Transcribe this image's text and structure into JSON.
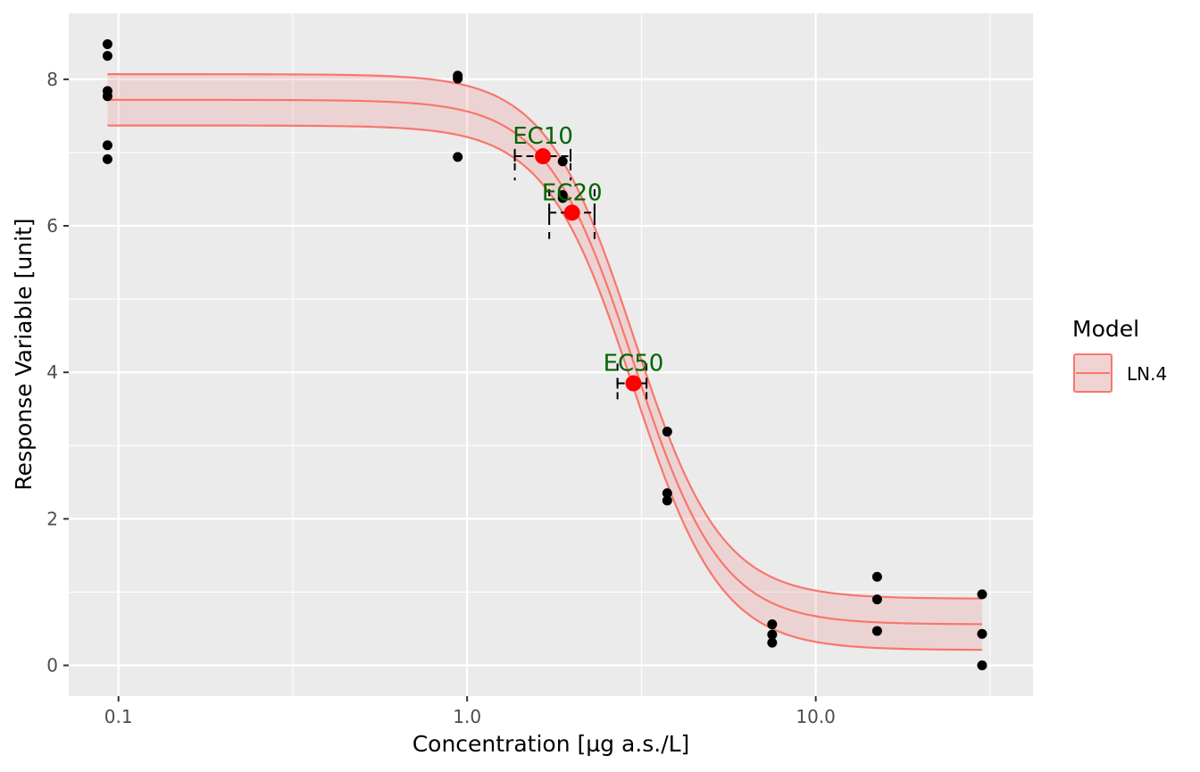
{
  "chart_data": {
    "type": "scatter",
    "xlabel": "Concentration [µg a.s./L]",
    "ylabel": "Response Variable [unit]",
    "x_scale": "log10",
    "xlim": [
      0.072,
      42
    ],
    "ylim": [
      -0.42,
      8.9
    ],
    "x_ticks": [
      0.1,
      1.0,
      10.0
    ],
    "x_tick_labels": [
      "0.1",
      "1.0",
      "10.0"
    ],
    "y_ticks": [
      0,
      2,
      4,
      6,
      8
    ],
    "y_tick_labels": [
      "0",
      "2",
      "4",
      "6",
      "8"
    ],
    "grid": true,
    "legend": {
      "title": "Model",
      "position": "right",
      "entries": [
        "LN.4"
      ]
    },
    "model": {
      "name": "LN.4",
      "type": "log-logistic 4-parameter",
      "lower": 0.56,
      "upper": 7.72,
      "ec50": 3.0,
      "slope": 3.45,
      "band_half_width": 0.35,
      "x_range": [
        0.093,
        30
      ],
      "color": "#f8766d",
      "band_fill": "#f08080"
    },
    "observations": {
      "color": "#000000",
      "points": [
        {
          "x": 0.093,
          "y": 8.48
        },
        {
          "x": 0.093,
          "y": 8.32
        },
        {
          "x": 0.093,
          "y": 7.84
        },
        {
          "x": 0.093,
          "y": 7.77
        },
        {
          "x": 0.093,
          "y": 7.1
        },
        {
          "x": 0.093,
          "y": 6.91
        },
        {
          "x": 0.94,
          "y": 8.05
        },
        {
          "x": 0.94,
          "y": 8.01
        },
        {
          "x": 0.94,
          "y": 6.94
        },
        {
          "x": 1.88,
          "y": 6.88
        },
        {
          "x": 1.88,
          "y": 6.42
        },
        {
          "x": 1.88,
          "y": 6.38
        },
        {
          "x": 3.75,
          "y": 3.19
        },
        {
          "x": 3.75,
          "y": 2.35
        },
        {
          "x": 3.75,
          "y": 2.25
        },
        {
          "x": 7.5,
          "y": 0.56
        },
        {
          "x": 7.5,
          "y": 0.42
        },
        {
          "x": 7.5,
          "y": 0.31
        },
        {
          "x": 15.0,
          "y": 1.21
        },
        {
          "x": 15.0,
          "y": 0.9
        },
        {
          "x": 15.0,
          "y": 0.47
        },
        {
          "x": 30.0,
          "y": 0.97
        },
        {
          "x": 30.0,
          "y": 0.43
        },
        {
          "x": 30.0,
          "y": 0.0
        }
      ]
    },
    "effect_concentrations": {
      "point_color": "#ff0000",
      "label_color": "#006400",
      "items": [
        {
          "label": "EC10",
          "x": 1.65,
          "y": 6.95,
          "x_low": 1.37,
          "x_high": 1.98,
          "y_low": 6.62,
          "y_high": 7.05
        },
        {
          "label": "EC20",
          "x": 2.0,
          "y": 6.18,
          "x_low": 1.72,
          "x_high": 2.32,
          "y_low": 5.82,
          "y_high": 6.5
        },
        {
          "label": "EC50",
          "x": 3.0,
          "y": 3.85,
          "x_low": 2.7,
          "x_high": 3.27,
          "y_low": 3.55,
          "y_high": 4.12
        }
      ]
    }
  }
}
